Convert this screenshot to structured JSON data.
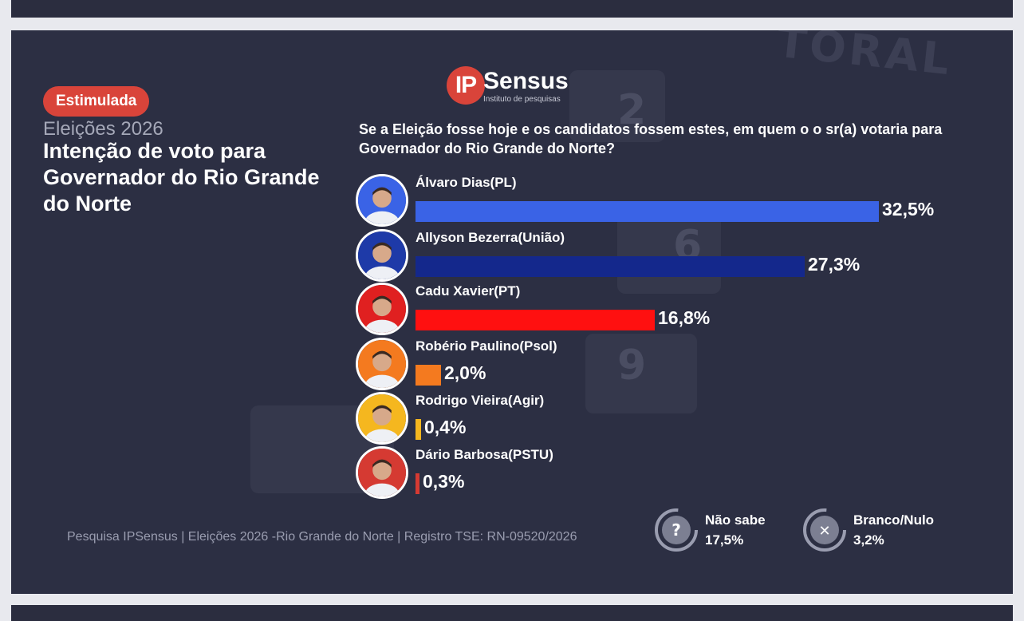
{
  "badge": "Estimulada",
  "subtitle": "Eleições 2026",
  "title": "Intenção de voto para Governador do Rio Grande do Norte",
  "logo": {
    "ip": "IP",
    "word": "Sensus",
    "tagline": "Instituto de pesquisas"
  },
  "question": "Se a Eleição fosse hoje e os candidatos fossem estes, em quem o o sr(a) votaria para  Governador do Rio Grande do Norte?",
  "footer": "Pesquisa IPSensus | Eleições 2026 -Rio Grande do Norte | Registro TSE:  RN-09520/2026",
  "colors": {
    "background": "#2c2f43",
    "badge": "#d9443a",
    "pl": "#3a63e6",
    "uniao": "#14288c",
    "pt": "#ff1010",
    "psol": "#f47a1f",
    "agir": "#f5b71f",
    "pstu": "#d53a32"
  },
  "chart_data": {
    "type": "bar",
    "orientation": "horizontal",
    "unit": "%",
    "categories": [
      "Álvaro Dias(PL)",
      "Allyson Bezerra(União)",
      "Cadu Xavier(PT)",
      "Robério Paulino(Psol)",
      "Rodrigo Vieira(Agir)",
      "Dário Barbosa(PSTU)"
    ],
    "values": [
      32.5,
      27.3,
      16.8,
      2.0,
      0.4,
      0.3
    ],
    "labels": [
      "32,5%",
      "27,3%",
      "16,8%",
      "2,0%",
      "0,4%",
      "0,3%"
    ],
    "bar_colors": [
      "#3a63e6",
      "#14288c",
      "#ff1010",
      "#f47a1f",
      "#f5b71f",
      "#d53a32"
    ],
    "avatar_bg": [
      "#3a63e6",
      "#1e3aa8",
      "#e02020",
      "#f47a1f",
      "#f5b71f",
      "#d53a32"
    ],
    "others": [
      {
        "label": "Não sabe",
        "value": 17.5,
        "text": "17,5%",
        "icon": "question-icon"
      },
      {
        "label": "Branco/Nulo",
        "value": 3.2,
        "text": "3,2%",
        "icon": "x-icon"
      }
    ]
  }
}
